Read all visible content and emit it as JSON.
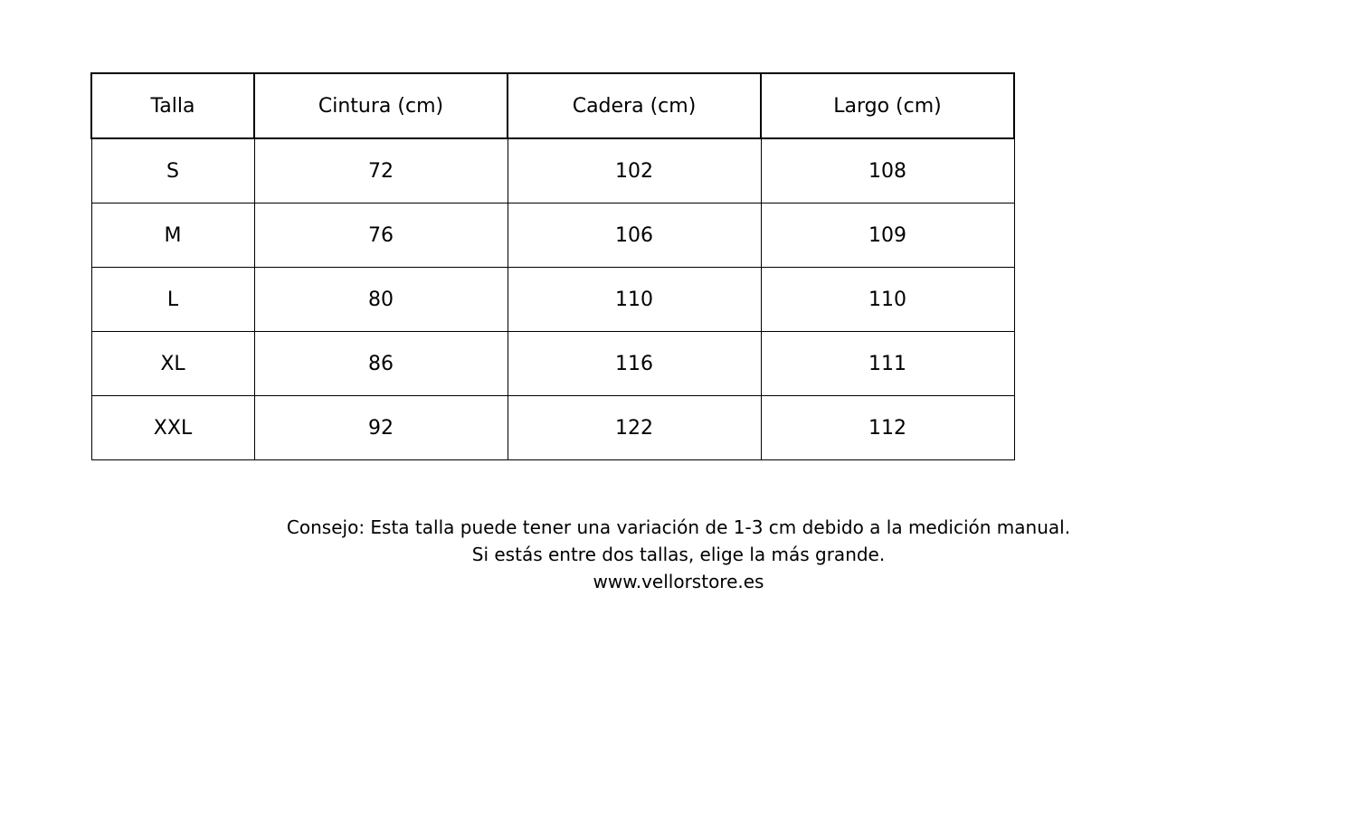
{
  "page": {
    "background": "#ffffff"
  },
  "colors": {
    "border": "#000000",
    "text": "#000000",
    "background": "#ffffff"
  },
  "chart_data": {
    "type": "table",
    "columns": [
      "Talla",
      "Cintura (cm)",
      "Cadera (cm)",
      "Largo (cm)"
    ],
    "rows": [
      [
        "S",
        "72",
        "102",
        "108"
      ],
      [
        "M",
        "76",
        "106",
        "109"
      ],
      [
        "L",
        "80",
        "110",
        "110"
      ],
      [
        "XL",
        "86",
        "116",
        "111"
      ],
      [
        "XXL",
        "92",
        "122",
        "112"
      ]
    ],
    "layout": {
      "grid": "on",
      "header_border_px": 2,
      "body_border_px": 1
    }
  },
  "notes": {
    "line1": "Consejo: Esta talla puede tener una variación de 1-3 cm debido a la medición manual.",
    "line2": "Si estás entre dos tallas, elige la más grande.",
    "line3": "www.vellorstore.es"
  }
}
